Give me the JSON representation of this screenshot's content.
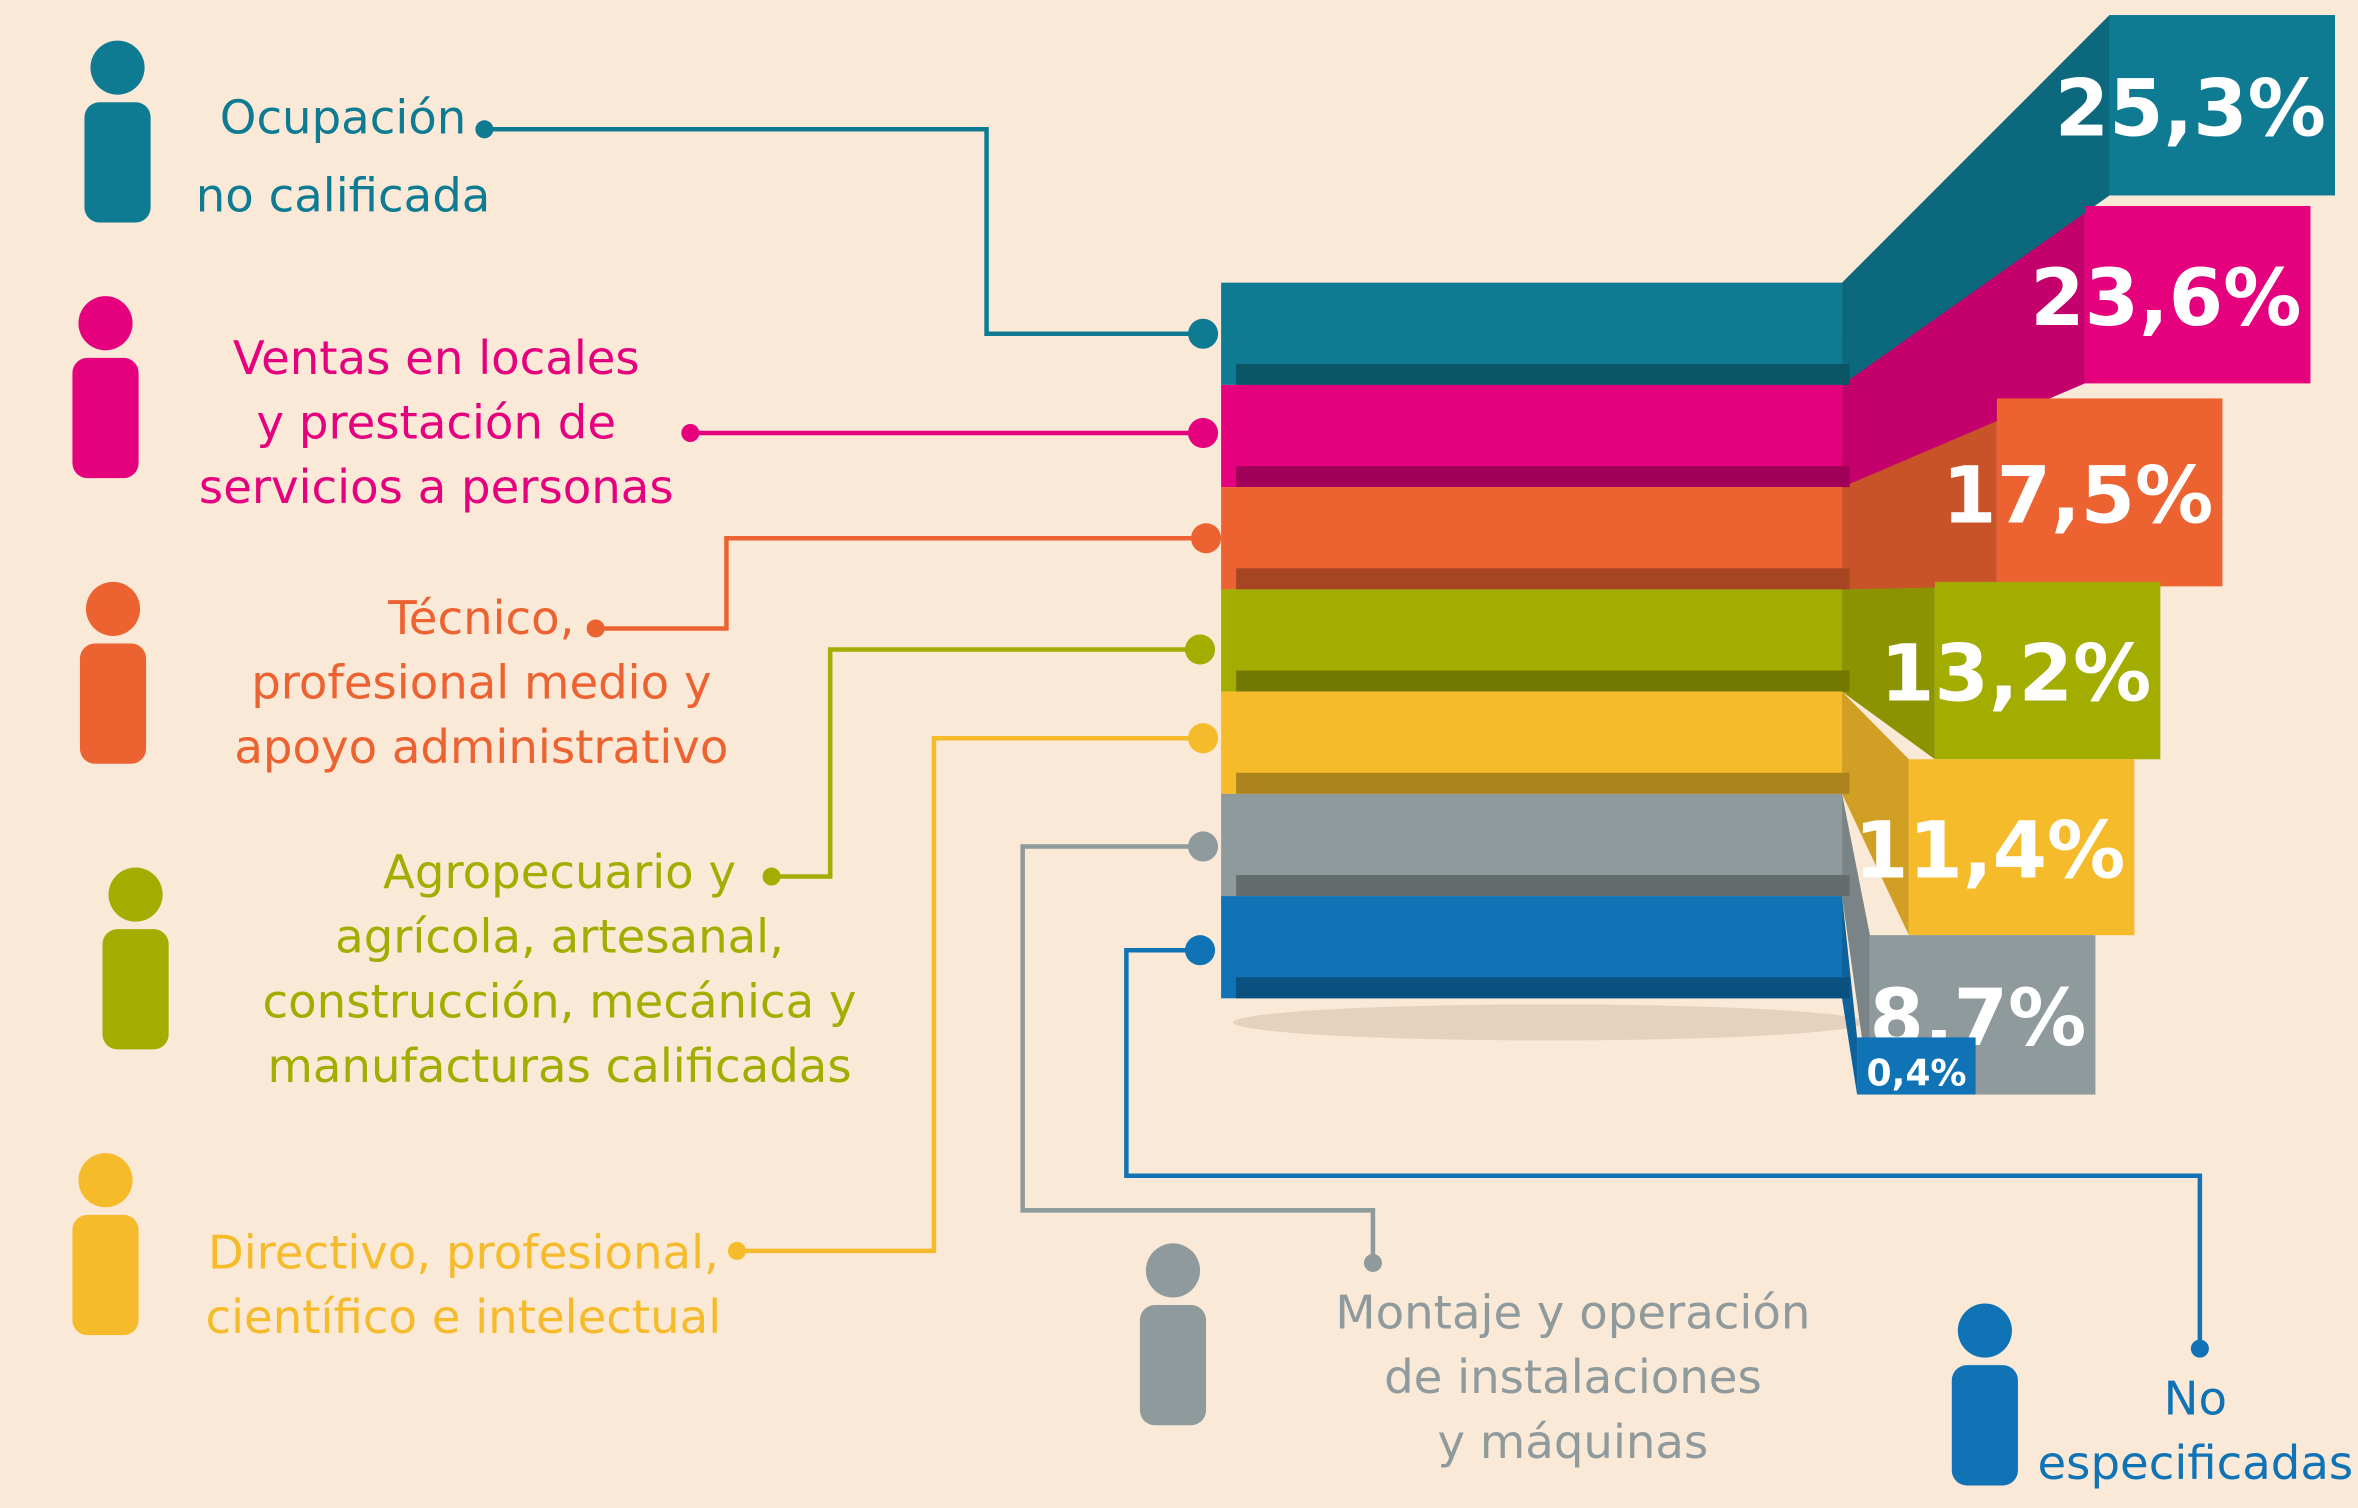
{
  "chart_data": {
    "type": "ribbon-bar",
    "categories": [
      "Ocupación\nno calificada",
      "Ventas en locales\ny prestación de\nservicios a personas",
      "Técnico,\nprofesional medio y\napoyo administrativo",
      "Agropecuario y\nagrícola, artesanal,\nconstrucción, mecánica y\nmanufacturas calificadas",
      "Directivo, profesional,\ncientífico e intelectual",
      "Montaje y operación\nde instalaciones\ny máquinas",
      "No\nespecificadas"
    ],
    "values": [
      25.3,
      23.6,
      17.5,
      13.2,
      11.4,
      8.7,
      0.4
    ],
    "value_labels": [
      "25,3%",
      "23,6%",
      "17,5%",
      "13,2%",
      "11,4%",
      "8,7%",
      "0,4%"
    ],
    "colors": [
      "#0e7b93",
      "#e5007e",
      "#ec6230",
      "#a3ad00",
      "#f6bb2a",
      "#8f9a9c",
      "#0f73b6"
    ]
  }
}
